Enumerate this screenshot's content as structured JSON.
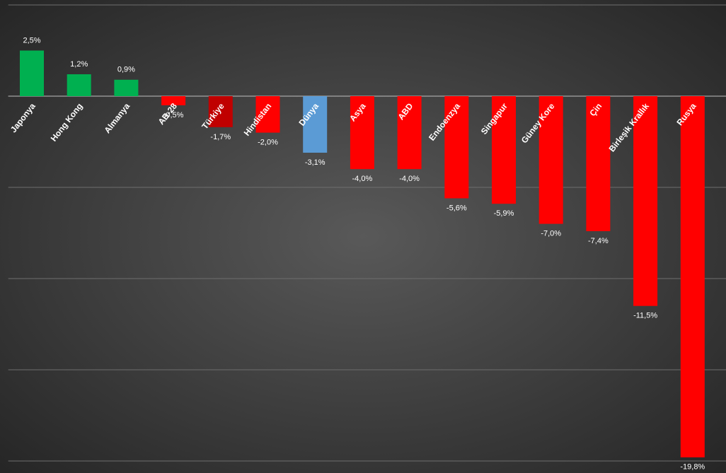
{
  "chart_data": {
    "type": "bar",
    "categories": [
      "Japonya",
      "Hong Kong",
      "Almanya",
      "AB-28",
      "Türkiye",
      "Hindistan",
      "Dünya",
      "Asya",
      "ABD",
      "Endoenzya",
      "Singapur",
      "Güney Kore",
      "Çin",
      "Birleşik Krallık",
      "Rusya"
    ],
    "values": [
      2.5,
      1.2,
      0.9,
      -0.5,
      -1.7,
      -2.0,
      -3.1,
      -4.0,
      -4.0,
      -5.6,
      -5.9,
      -7.0,
      -7.4,
      -11.5,
      -19.8
    ],
    "value_labels": [
      "2,5%",
      "1,2%",
      "0,9%",
      "-0,5%",
      "-1,7%",
      "-2,0%",
      "-3,1%",
      "-4,0%",
      "-4,0%",
      "-5,6%",
      "-5,9%",
      "-7,0%",
      "-7,4%",
      "-11,5%",
      "-19,8%"
    ],
    "colors": [
      "#00b050",
      "#00b050",
      "#00b050",
      "#ff0000",
      "#c00000",
      "#ff0000",
      "#5b9bd5",
      "#ff0000",
      "#ff0000",
      "#ff0000",
      "#ff0000",
      "#ff0000",
      "#ff0000",
      "#ff0000",
      "#ff0000"
    ],
    "ylim": [
      -20,
      5
    ],
    "yticks": [
      -20,
      -15,
      -10,
      -5,
      0,
      5
    ],
    "grid": true
  }
}
